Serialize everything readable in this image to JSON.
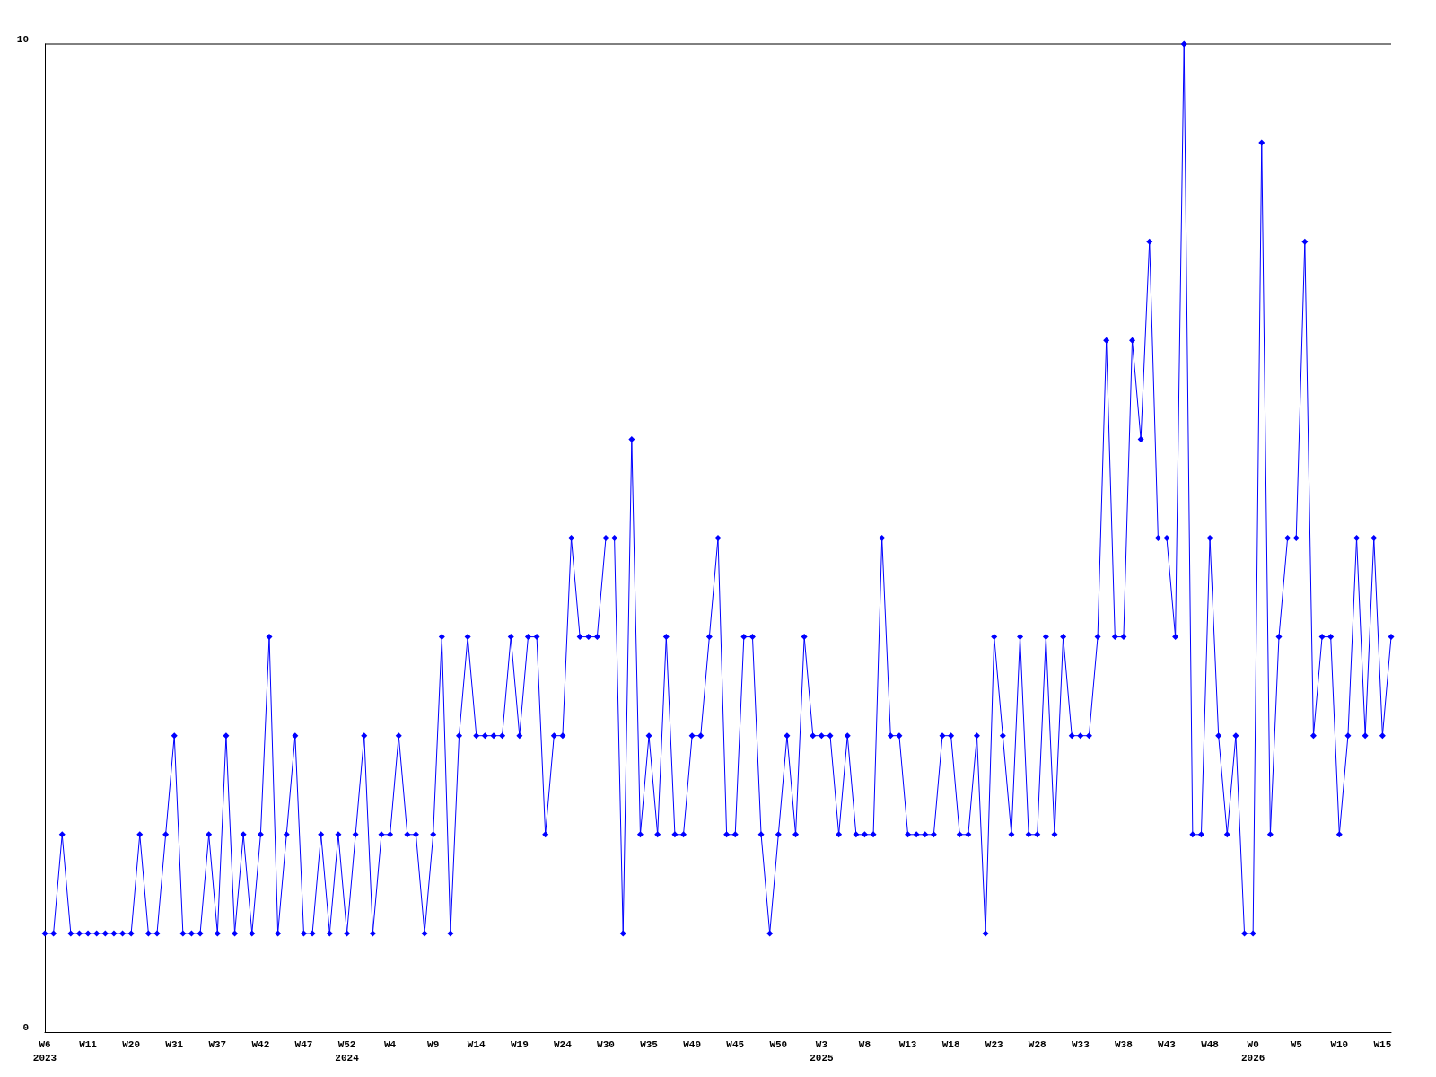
{
  "chart_data": {
    "type": "line",
    "categories": [
      "W6\n2023",
      null,
      null,
      null,
      null,
      "W11",
      null,
      null,
      null,
      null,
      "W20",
      null,
      null,
      null,
      null,
      "W31",
      null,
      null,
      null,
      null,
      "W37",
      null,
      null,
      null,
      null,
      "W42",
      null,
      null,
      null,
      null,
      "W47",
      null,
      null,
      null,
      null,
      "W52\n2024",
      null,
      null,
      null,
      null,
      "W4",
      null,
      null,
      null,
      null,
      "W9",
      null,
      null,
      null,
      null,
      "W14",
      null,
      null,
      null,
      null,
      "W19",
      null,
      null,
      null,
      null,
      "W24",
      null,
      null,
      null,
      null,
      "W30",
      null,
      null,
      null,
      null,
      "W35",
      null,
      null,
      null,
      null,
      "W40",
      null,
      null,
      null,
      null,
      "W45",
      null,
      null,
      null,
      null,
      "W50",
      null,
      null,
      null,
      null,
      "W3\n2025",
      null,
      null,
      null,
      null,
      "W8",
      null,
      null,
      null,
      null,
      "W13",
      null,
      null,
      null,
      null,
      "W18",
      null,
      null,
      null,
      null,
      "W23",
      null,
      null,
      null,
      null,
      "W28",
      null,
      null,
      null,
      null,
      "W33",
      null,
      null,
      null,
      null,
      "W38",
      null,
      null,
      null,
      null,
      "W43",
      null,
      null,
      null,
      null,
      "W48",
      null,
      null,
      null,
      null,
      "W0\n2026",
      null,
      null,
      null,
      null,
      "W5",
      null,
      null,
      null,
      null,
      "W10",
      null,
      null,
      null,
      null,
      "W15",
      null
    ],
    "series": [
      {
        "color": "#0000ff",
        "values": [
          1,
          1,
          2,
          1,
          1,
          1,
          1,
          1,
          1,
          1,
          1,
          2,
          1,
          1,
          2,
          3,
          1,
          1,
          1,
          2,
          1,
          3,
          1,
          2,
          1,
          2,
          4,
          1,
          2,
          3,
          1,
          1,
          2,
          1,
          2,
          1,
          2,
          3,
          1,
          2,
          2,
          3,
          2,
          2,
          1,
          2,
          4,
          1,
          3,
          4,
          3,
          3,
          3,
          3,
          4,
          3,
          4,
          4,
          2,
          3,
          3,
          5,
          4,
          4,
          4,
          5,
          5,
          1,
          6,
          2,
          3,
          2,
          4,
          2,
          2,
          3,
          3,
          4,
          5,
          2,
          2,
          4,
          4,
          2,
          1,
          2,
          3,
          2,
          4,
          3,
          3,
          3,
          2,
          3,
          2,
          2,
          2,
          5,
          3,
          3,
          2,
          2,
          2,
          2,
          3,
          3,
          2,
          2,
          3,
          1,
          4,
          3,
          2,
          4,
          2,
          2,
          4,
          2,
          4,
          3,
          3,
          3,
          4,
          7,
          4,
          4,
          7,
          6,
          8,
          5,
          5,
          4,
          10,
          2,
          2,
          5,
          3,
          2,
          3,
          1,
          1,
          9,
          2,
          4,
          5,
          5,
          8,
          3,
          4,
          4,
          2,
          3,
          5,
          3,
          5,
          3,
          4
        ]
      }
    ],
    "ylim": [
      0,
      10
    ],
    "yticks": [
      0,
      10
    ],
    "grid": false,
    "marker": "diamond",
    "line_style": "solid"
  }
}
